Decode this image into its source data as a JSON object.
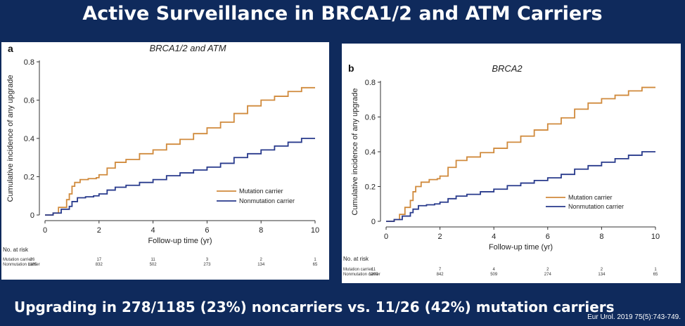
{
  "slide": {
    "title": "Active Surveillance in BRCA1/2 and ATM Carriers",
    "footer": "Upgrading in 278/1185 (23%) noncarriers vs. 11/26 (42%) mutation carriers",
    "citation": "Eur Urol. 2019 75(5):743-749."
  },
  "colors": {
    "mutation": "#d08a3c",
    "nonmutation": "#283a8c",
    "background": "#0f2a5c"
  },
  "chart_data": [
    {
      "type": "line",
      "panel_label": "a",
      "title": "BRCA1/2 and ATM",
      "xlabel": "Follow-up time (yr)",
      "ylabel": "Cumulative incidence of any upgrade",
      "xlim": [
        0,
        10
      ],
      "ylim": [
        0,
        0.8
      ],
      "xticks": [
        0,
        2,
        4,
        6,
        8,
        10
      ],
      "yticks": [
        0,
        0.2,
        0.4,
        0.6,
        0.8
      ],
      "series": [
        {
          "name": "Mutation carrier",
          "x": [
            0,
            0.3,
            0.5,
            0.8,
            0.9,
            1.0,
            1.1,
            1.3,
            1.6,
            1.9,
            2.0,
            2.3,
            2.6,
            3.0,
            3.5,
            4.0,
            4.5,
            5.0,
            5.5,
            6.0,
            6.5,
            7.0,
            7.5,
            8.0,
            8.5,
            9.0,
            9.5,
            10.0
          ],
          "y": [
            0,
            0.01,
            0.04,
            0.08,
            0.11,
            0.15,
            0.17,
            0.185,
            0.19,
            0.195,
            0.21,
            0.245,
            0.275,
            0.29,
            0.32,
            0.34,
            0.37,
            0.395,
            0.425,
            0.455,
            0.485,
            0.53,
            0.57,
            0.6,
            0.62,
            0.645,
            0.665,
            0.665
          ]
        },
        {
          "name": "Nonmutation carrier",
          "x": [
            0,
            0.3,
            0.6,
            0.9,
            1.0,
            1.2,
            1.5,
            1.8,
            2.0,
            2.3,
            2.6,
            3.0,
            3.5,
            4.0,
            4.5,
            5.0,
            5.5,
            6.0,
            6.5,
            7.0,
            7.5,
            8.0,
            8.5,
            9.0,
            9.5,
            10.0
          ],
          "y": [
            0,
            0.01,
            0.03,
            0.045,
            0.07,
            0.09,
            0.095,
            0.1,
            0.11,
            0.13,
            0.145,
            0.155,
            0.17,
            0.185,
            0.205,
            0.22,
            0.235,
            0.25,
            0.27,
            0.3,
            0.32,
            0.34,
            0.36,
            0.38,
            0.4,
            0.4
          ]
        }
      ],
      "number_at_risk": {
        "header": "No. at risk",
        "rows": [
          {
            "label": "Mutation carrier",
            "values": [
              "26",
              "17",
              "11",
              "3",
              "2",
              "1"
            ]
          },
          {
            "label": "Nonmutation carrier",
            "values": [
              "1185",
              "832",
              "502",
              "273",
              "134",
              "65"
            ]
          }
        ]
      }
    },
    {
      "type": "line",
      "panel_label": "b",
      "title": "BRCA2",
      "xlabel": "Follow-up time (yr)",
      "ylabel": "Cumulative incidence of any upgrade",
      "xlim": [
        0,
        10
      ],
      "ylim": [
        0,
        0.8
      ],
      "xticks": [
        0,
        2,
        4,
        6,
        8,
        10
      ],
      "yticks": [
        0,
        0.2,
        0.4,
        0.6,
        0.8
      ],
      "series": [
        {
          "name": "Mutation carrier",
          "x": [
            0,
            0.3,
            0.5,
            0.7,
            0.9,
            1.0,
            1.1,
            1.3,
            1.6,
            1.9,
            2.0,
            2.3,
            2.6,
            3.0,
            3.5,
            4.0,
            4.5,
            5.0,
            5.5,
            6.0,
            6.5,
            7.0,
            7.5,
            8.0,
            8.5,
            9.0,
            9.5,
            10.0
          ],
          "y": [
            0,
            0.01,
            0.04,
            0.08,
            0.12,
            0.17,
            0.2,
            0.225,
            0.24,
            0.245,
            0.26,
            0.31,
            0.35,
            0.37,
            0.395,
            0.42,
            0.455,
            0.49,
            0.525,
            0.56,
            0.595,
            0.645,
            0.68,
            0.705,
            0.725,
            0.75,
            0.77,
            0.77
          ]
        },
        {
          "name": "Nonmutation carrier",
          "x": [
            0,
            0.3,
            0.6,
            0.9,
            1.0,
            1.2,
            1.5,
            1.8,
            2.0,
            2.3,
            2.6,
            3.0,
            3.5,
            4.0,
            4.5,
            5.0,
            5.5,
            6.0,
            6.5,
            7.0,
            7.5,
            8.0,
            8.5,
            9.0,
            9.5,
            10.0
          ],
          "y": [
            0,
            0.01,
            0.03,
            0.05,
            0.07,
            0.09,
            0.095,
            0.1,
            0.11,
            0.13,
            0.145,
            0.155,
            0.17,
            0.185,
            0.205,
            0.22,
            0.235,
            0.25,
            0.27,
            0.3,
            0.32,
            0.34,
            0.36,
            0.38,
            0.4,
            0.4
          ]
        }
      ],
      "number_at_risk": {
        "header": "No. at risk",
        "rows": [
          {
            "label": "Mutation carrier",
            "values": [
              "11",
              "7",
              "4",
              "2",
              "2",
              "1"
            ]
          },
          {
            "label": "Nonmutation carrier",
            "values": [
              "1200",
              "842",
              "509",
              "274",
              "134",
              "65"
            ]
          }
        ]
      }
    }
  ]
}
